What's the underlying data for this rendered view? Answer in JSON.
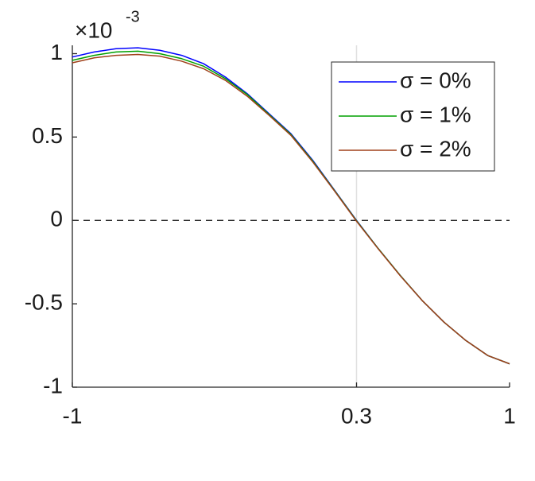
{
  "chart_data": {
    "type": "line",
    "y_multiplier": {
      "base": "×10",
      "exponent": "-3"
    },
    "x": [
      -1,
      -0.9,
      -0.8,
      -0.7,
      -0.6,
      -0.5,
      -0.4,
      -0.3,
      -0.2,
      -0.1,
      0,
      0.1,
      0.2,
      0.3,
      0.4,
      0.5,
      0.6,
      0.7,
      0.8,
      0.9,
      1
    ],
    "series": [
      {
        "name": "σ = 0%",
        "color": "#0000ff",
        "values": [
          0.98,
          1.01,
          1.03,
          1.035,
          1.02,
          0.99,
          0.94,
          0.86,
          0.76,
          0.64,
          0.52,
          0.36,
          0.18,
          0,
          -0.17,
          -0.33,
          -0.48,
          -0.61,
          -0.72,
          -0.81,
          -0.86
        ]
      },
      {
        "name": "σ = 1%",
        "color": "#00a000",
        "values": [
          0.96,
          0.99,
          1.01,
          1.015,
          1.0,
          0.97,
          0.925,
          0.85,
          0.755,
          0.635,
          0.515,
          0.355,
          0.178,
          -0.002,
          -0.17,
          -0.33,
          -0.48,
          -0.61,
          -0.72,
          -0.81,
          -0.86
        ]
      },
      {
        "name": "σ = 2%",
        "color": "#a0401a",
        "values": [
          0.945,
          0.975,
          0.99,
          0.995,
          0.985,
          0.955,
          0.91,
          0.84,
          0.745,
          0.63,
          0.51,
          0.35,
          0.175,
          -0.005,
          -0.172,
          -0.332,
          -0.48,
          -0.61,
          -0.72,
          -0.81,
          -0.86
        ]
      }
    ],
    "xlim": [
      -1,
      1
    ],
    "xticks": [
      -1,
      0.3,
      1
    ],
    "ylim": [
      -1,
      1.05
    ],
    "yticks": [
      -1,
      -0.5,
      0,
      0.5,
      1
    ],
    "reference_lines": {
      "x": 0.3,
      "y": 0
    },
    "legend": "top-right"
  }
}
